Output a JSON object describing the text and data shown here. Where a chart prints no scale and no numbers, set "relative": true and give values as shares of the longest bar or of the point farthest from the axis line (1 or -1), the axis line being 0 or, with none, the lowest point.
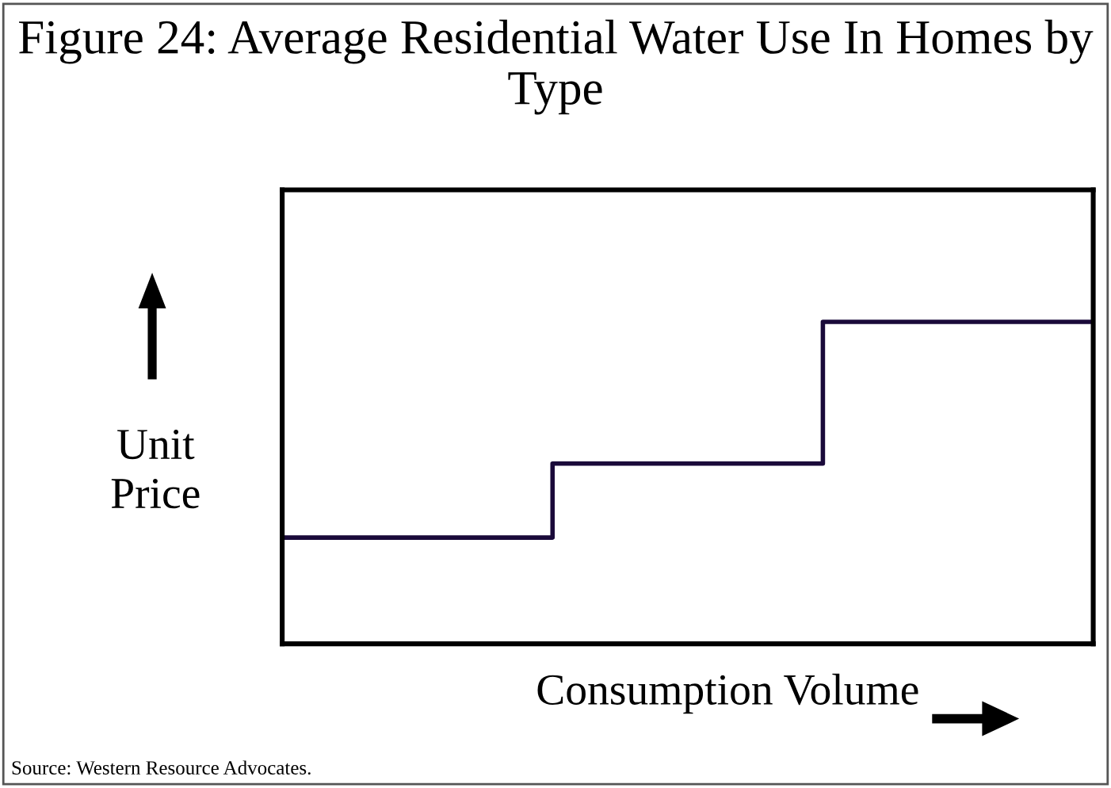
{
  "chart_data": {
    "type": "step",
    "title": "Figure 24: Average Residential Water Use In Homes by Type",
    "xlabel": "Consumption Volume",
    "ylabel": "Unit Price",
    "categories": [
      null,
      null,
      null,
      null
    ],
    "series": [
      {
        "color": "#1a0a3a",
        "values": [
          0.33,
          0.56,
          1,
          1
        ]
      }
    ],
    "relative": true,
    "annotations": [
      "Source: Western Resource Advocates."
    ]
  }
}
